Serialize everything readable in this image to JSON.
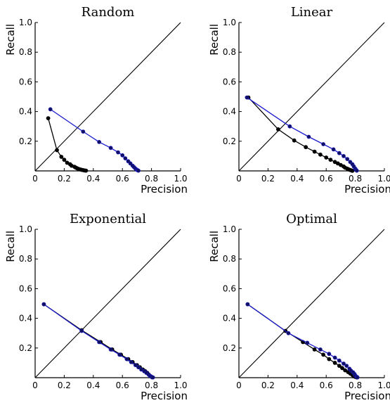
{
  "colors": {
    "black_series": "#000000",
    "blue_series": "#1a1acc",
    "diagonal": "#000000",
    "axes": "#000000",
    "background": "#ffffff"
  },
  "chart_data": [
    {
      "type": "line",
      "title": "Random",
      "xlabel": "Precision",
      "ylabel": "Recall",
      "xlim": [
        0,
        1.0
      ],
      "ylim": [
        0,
        1.0
      ],
      "xticks": [
        "0",
        "0.2",
        "0.4",
        "0.6",
        "0.8",
        "1.0"
      ],
      "yticks": [
        "0.2",
        "0.4",
        "0.6",
        "0.8",
        "1.0"
      ],
      "diagonal": [
        [
          0,
          0
        ],
        [
          1,
          1
        ]
      ],
      "series": [
        {
          "color": "#000000",
          "x": [
            0.09,
            0.15,
            0.18,
            0.2,
            0.22,
            0.24,
            0.25,
            0.27,
            0.28,
            0.29,
            0.3,
            0.31,
            0.32,
            0.33,
            0.34,
            0.35
          ],
          "y": [
            0.355,
            0.14,
            0.095,
            0.075,
            0.055,
            0.045,
            0.035,
            0.028,
            0.022,
            0.017,
            0.013,
            0.01,
            0.007,
            0.005,
            0.003,
            0.002
          ]
        },
        {
          "color": "#1a1acc",
          "x": [
            0.105,
            0.33,
            0.44,
            0.52,
            0.57,
            0.6,
            0.62,
            0.64,
            0.655,
            0.67,
            0.68,
            0.69,
            0.7,
            0.705,
            0.71
          ],
          "y": [
            0.415,
            0.265,
            0.195,
            0.155,
            0.125,
            0.105,
            0.085,
            0.065,
            0.05,
            0.035,
            0.025,
            0.015,
            0.008,
            0.004,
            0.002
          ]
        }
      ]
    },
    {
      "type": "line",
      "title": "Linear",
      "xlabel": "Precision",
      "ylabel": "Recall",
      "xlim": [
        0,
        1.0
      ],
      "ylim": [
        0,
        1.0
      ],
      "xticks": [
        "0",
        "0.2",
        "0.4",
        "0.6",
        "0.8",
        "1.0"
      ],
      "yticks": [
        "0.2",
        "0.4",
        "0.6",
        "0.8",
        "1.0"
      ],
      "diagonal": [
        [
          0,
          0
        ],
        [
          1,
          1
        ]
      ],
      "series": [
        {
          "color": "#000000",
          "x": [
            0.065,
            0.27,
            0.38,
            0.46,
            0.52,
            0.56,
            0.6,
            0.63,
            0.66,
            0.68,
            0.7,
            0.72,
            0.73,
            0.745,
            0.755,
            0.765,
            0.775,
            0.78
          ],
          "y": [
            0.495,
            0.28,
            0.205,
            0.16,
            0.13,
            0.11,
            0.09,
            0.075,
            0.06,
            0.05,
            0.04,
            0.03,
            0.022,
            0.015,
            0.01,
            0.006,
            0.003,
            0.001
          ]
        },
        {
          "color": "#1a1acc",
          "x": [
            0.055,
            0.35,
            0.48,
            0.58,
            0.65,
            0.69,
            0.72,
            0.745,
            0.765,
            0.78,
            0.79,
            0.8,
            0.805,
            0.81
          ],
          "y": [
            0.495,
            0.3,
            0.23,
            0.18,
            0.145,
            0.12,
            0.1,
            0.08,
            0.06,
            0.045,
            0.03,
            0.015,
            0.007,
            0.002
          ]
        }
      ]
    },
    {
      "type": "line",
      "title": "Exponential",
      "xlabel": "Precision",
      "ylabel": "Recall",
      "xlim": [
        0,
        1.0
      ],
      "ylim": [
        0,
        1.0
      ],
      "xticks": [
        "0",
        "0.2",
        "0.4",
        "0.6",
        "0.8",
        "1.0"
      ],
      "yticks": [
        "0.2",
        "0.4",
        "0.6",
        "0.8",
        "1.0"
      ],
      "diagonal": [
        [
          0,
          0
        ],
        [
          1,
          1
        ]
      ],
      "series": [
        {
          "color": "#000000",
          "x": [
            0.06,
            0.32,
            0.45,
            0.53,
            0.59,
            0.64,
            0.67,
            0.7,
            0.72,
            0.74,
            0.755,
            0.77,
            0.78,
            0.79,
            0.8,
            0.805
          ],
          "y": [
            0.495,
            0.32,
            0.24,
            0.19,
            0.155,
            0.125,
            0.105,
            0.085,
            0.07,
            0.055,
            0.045,
            0.033,
            0.022,
            0.013,
            0.006,
            0.002
          ]
        },
        {
          "color": "#1a1acc",
          "x": [
            0.06,
            0.32,
            0.44,
            0.52,
            0.58,
            0.63,
            0.66,
            0.69,
            0.71,
            0.73,
            0.75,
            0.765,
            0.78,
            0.79,
            0.8,
            0.81
          ],
          "y": [
            0.495,
            0.315,
            0.24,
            0.19,
            0.155,
            0.125,
            0.105,
            0.085,
            0.07,
            0.055,
            0.043,
            0.032,
            0.021,
            0.012,
            0.006,
            0.002
          ]
        }
      ]
    },
    {
      "type": "line",
      "title": "Optimal",
      "xlabel": "Precision",
      "ylabel": "Recall",
      "xlim": [
        0,
        1.0
      ],
      "ylim": [
        0,
        1.0
      ],
      "xticks": [
        "0",
        "0.2",
        "0.4",
        "0.6",
        "0.8",
        "1.0"
      ],
      "yticks": [
        "0.2",
        "0.4",
        "0.6",
        "0.8",
        "1.0"
      ],
      "diagonal": [
        [
          0,
          0
        ],
        [
          1,
          1
        ]
      ],
      "series": [
        {
          "color": "#000000",
          "x": [
            0.06,
            0.32,
            0.44,
            0.52,
            0.58,
            0.62,
            0.66,
            0.69,
            0.71,
            0.73,
            0.75,
            0.765,
            0.78,
            0.79,
            0.8,
            0.81
          ],
          "y": [
            0.495,
            0.315,
            0.24,
            0.19,
            0.155,
            0.125,
            0.1,
            0.08,
            0.065,
            0.05,
            0.038,
            0.028,
            0.018,
            0.01,
            0.005,
            0.002
          ]
        },
        {
          "color": "#1a1acc",
          "x": [
            0.06,
            0.34,
            0.47,
            0.56,
            0.62,
            0.66,
            0.69,
            0.72,
            0.74,
            0.76,
            0.77,
            0.785,
            0.795,
            0.8,
            0.81,
            0.815
          ],
          "y": [
            0.495,
            0.3,
            0.235,
            0.19,
            0.16,
            0.135,
            0.115,
            0.095,
            0.08,
            0.06,
            0.048,
            0.036,
            0.024,
            0.014,
            0.006,
            0.002
          ]
        }
      ]
    }
  ]
}
